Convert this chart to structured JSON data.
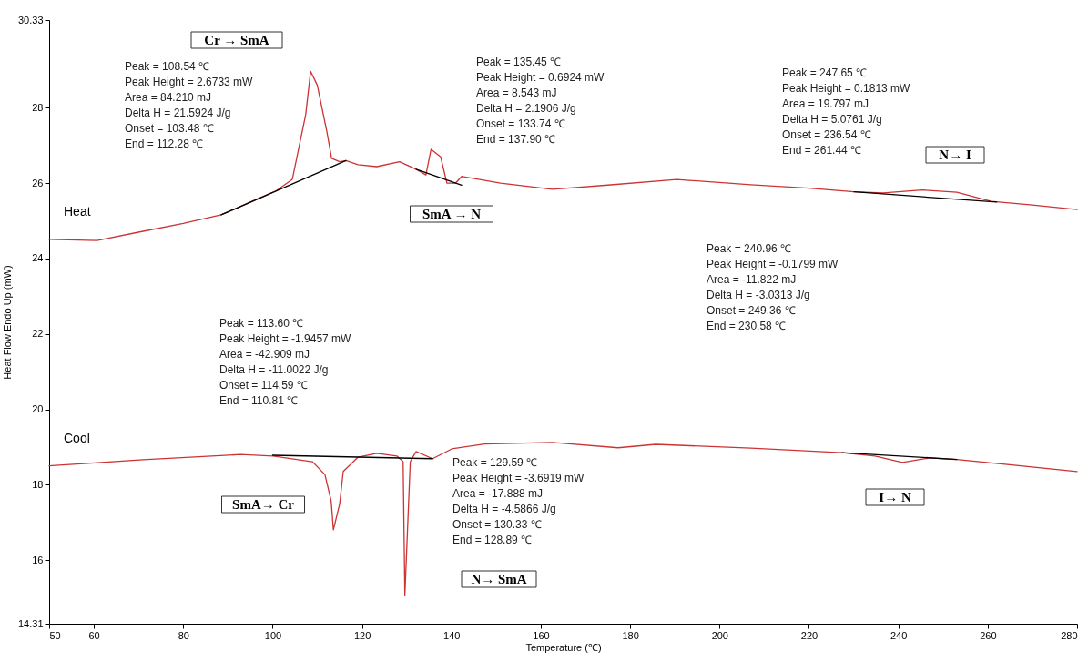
{
  "chart_data": {
    "type": "line",
    "xlabel": "Temperature (℃)",
    "ylabel": "Heat Flow Endo Up (mW)",
    "xlim": [
      50,
      280
    ],
    "xticks": [
      50,
      60,
      80,
      100,
      120,
      140,
      160,
      180,
      200,
      220,
      240,
      260,
      280
    ],
    "ylim": [
      14.31,
      30.33
    ],
    "yticks": [
      14.31,
      16,
      18,
      20,
      22,
      24,
      26,
      28,
      30.33
    ],
    "grid": false,
    "series": [
      {
        "name": "Heat",
        "color": "#cc3333",
        "x": [
          50,
          60.7,
          70,
          80,
          88.5,
          95,
          100.8,
          104.4,
          107.4,
          108.5,
          110,
          112.1,
          113.2,
          115,
          116.4,
          119.1,
          123.3,
          128.4,
          132.1,
          134.3,
          135.45,
          137.6,
          139,
          140.9,
          142.3,
          151,
          162.6,
          175,
          190.4,
          207,
          220,
          230.1,
          236.6,
          245.4,
          253.1,
          260.8,
          270,
          280
        ],
        "values": [
          24.51,
          24.48,
          24.7,
          24.93,
          25.16,
          25.5,
          25.8,
          26.1,
          27.82,
          28.97,
          28.6,
          27.39,
          26.66,
          26.57,
          26.6,
          26.49,
          26.44,
          26.57,
          26.37,
          26.22,
          26.9,
          26.7,
          26.0,
          26.0,
          26.18,
          26.0,
          25.84,
          25.95,
          26.1,
          25.96,
          25.87,
          25.77,
          25.74,
          25.82,
          25.76,
          25.52,
          25.42,
          25.3
        ]
      },
      {
        "name": "Cool",
        "color": "#cc3333",
        "x": [
          50,
          51.4,
          71,
          92.8,
          100.1,
          108.9,
          111.7,
          113.1,
          113.6,
          115,
          115.8,
          119.1,
          123.3,
          127.8,
          129.2,
          129.59,
          130.8,
          132.1,
          135.8,
          140.1,
          147.4,
          162.6,
          177.3,
          185.7,
          207,
          227.4,
          234.8,
          240.9,
          247,
          253.1,
          280
        ],
        "values": [
          18.5,
          18.51,
          18.66,
          18.8,
          18.76,
          18.61,
          18.27,
          17.57,
          16.8,
          17.49,
          18.35,
          18.73,
          18.83,
          18.76,
          18.61,
          15.07,
          18.61,
          18.88,
          18.69,
          18.95,
          19.08,
          19.12,
          18.98,
          19.07,
          18.97,
          18.85,
          18.76,
          18.59,
          18.71,
          18.67,
          18.35
        ]
      },
      {
        "type": "line",
        "color": "#000000",
        "x": [
          88.5,
          116.4
        ],
        "values": [
          25.16,
          26.6
        ]
      },
      {
        "type": "line",
        "color": "#000000",
        "x": [
          132.1,
          142.3
        ],
        "values": [
          26.37,
          25.95
        ]
      },
      {
        "type": "line",
        "color": "#000000",
        "x": [
          230.1,
          262
        ],
        "values": [
          25.77,
          25.5
        ]
      },
      {
        "type": "line",
        "color": "#000000",
        "x": [
          100,
          135.8
        ],
        "values": [
          18.78,
          18.69
        ]
      },
      {
        "type": "line",
        "color": "#000000",
        "x": [
          227.4,
          253.1
        ],
        "values": [
          18.85,
          18.67
        ]
      }
    ],
    "annotations": [
      "Cr → SmA",
      "SmA → N",
      "N→ I",
      "SmA→ Cr",
      "N→ SmA",
      "I→ N",
      "Peak = 108.54 ℃\nPeak Height = 2.6733 mW\nArea = 84.210 mJ\nDelta H = 21.5924 J/g\nOnset = 103.48 ℃\nEnd = 112.28 ℃",
      "Peak = 135.45 ℃\nPeak Height = 0.6924 mW\nArea = 8.543 mJ\nDelta H = 2.1906 J/g\nOnset = 133.74 ℃\nEnd = 137.90 ℃",
      "Peak = 247.65 ℃\nPeak Height = 0.1813 mW\nArea = 19.797 mJ\nDelta H = 5.0761 J/g\nOnset = 236.54 ℃\nEnd = 261.44 ℃",
      "Peak = 113.60 ℃\nPeak Height = -1.9457 mW\nArea = -42.909 mJ\nDelta H = -11.0022 J/g\nOnset = 114.59 ℃\nEnd = 110.81 ℃",
      "Peak = 129.59 ℃\nPeak Height = -3.6919 mW\nArea = -17.888 mJ\nDelta H = -4.5866 J/g\nOnset = 130.33 ℃\nEnd = 128.89 ℃",
      "Peak = 240.96 ℃\nPeak Height = -0.1799 mW\nArea = -11.822 mJ\nDelta H = -3.0313 J/g\nOnset = 249.36 ℃\nEnd = 230.58 ℃"
    ]
  }
}
